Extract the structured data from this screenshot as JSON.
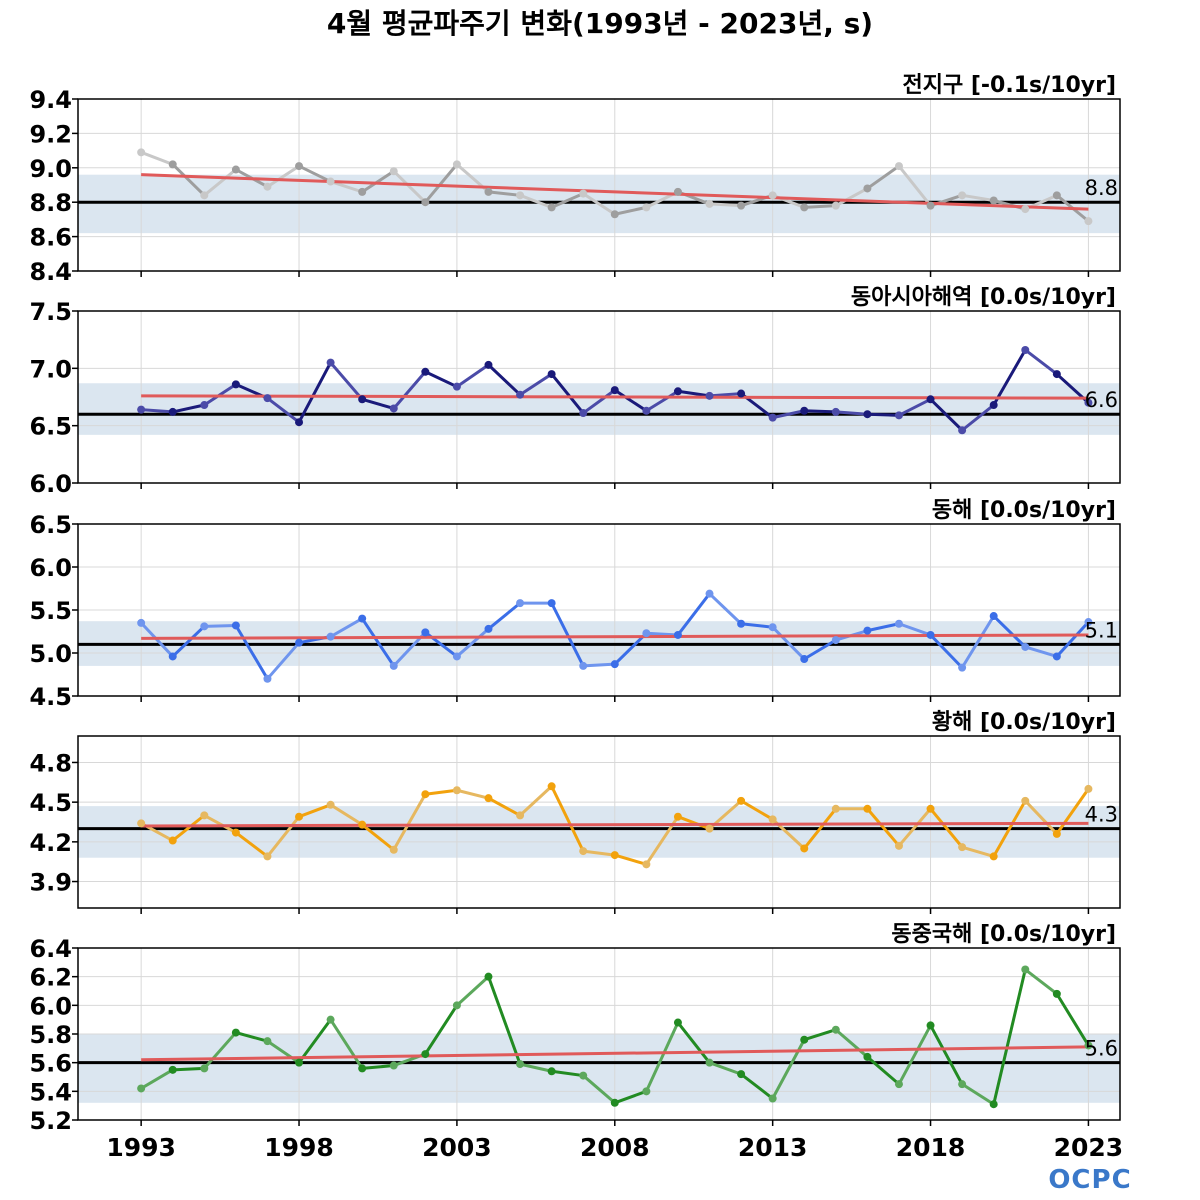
{
  "title": "4월 평균파주기 변화(1993년 - 2023년, s)",
  "logo": "OCPC",
  "colors": {
    "trend": "#e05a5a",
    "mean": "#000000",
    "band": "#dbe6f0",
    "grid": "#d8d8d8"
  },
  "chart_data": {
    "type": "line",
    "x": [
      1993,
      1994,
      1995,
      1996,
      1997,
      1998,
      1999,
      2000,
      2001,
      2002,
      2003,
      2004,
      2005,
      2006,
      2007,
      2008,
      2009,
      2010,
      2011,
      2012,
      2013,
      2014,
      2015,
      2016,
      2017,
      2018,
      2019,
      2020,
      2021,
      2022,
      2023
    ],
    "x_ticks": [
      1993,
      1998,
      2003,
      2008,
      2013,
      2018,
      2023
    ],
    "x_tick_labels": [
      "1993",
      "1998",
      "2003",
      "2008",
      "2013",
      "2018",
      "2023"
    ],
    "xlim": [
      1991,
      2024
    ],
    "panels": [
      {
        "name": "전지구",
        "label": "전지구 [-0.1s/10yr]",
        "mean_label": "8.8",
        "mean": 8.8,
        "band": [
          8.62,
          8.96
        ],
        "ylim": [
          8.4,
          9.4
        ],
        "yticks": [
          8.4,
          8.6,
          8.8,
          9.0,
          9.2,
          9.4
        ],
        "ytick_labels": [
          "8.4",
          "8.6",
          "8.8",
          "9.0",
          "9.2",
          "9.4"
        ],
        "trend": [
          8.96,
          8.76
        ],
        "color_dark": "#9e9e9e",
        "color_light": "#c8c8c8",
        "values": [
          9.09,
          9.02,
          8.84,
          8.99,
          8.89,
          9.01,
          8.92,
          8.86,
          8.98,
          8.8,
          9.02,
          8.86,
          8.84,
          8.77,
          8.85,
          8.73,
          8.77,
          8.86,
          8.79,
          8.78,
          8.84,
          8.77,
          8.78,
          8.88,
          9.01,
          8.78,
          8.84,
          8.81,
          8.76,
          8.84,
          8.69
        ]
      },
      {
        "name": "동아시아해역",
        "label": "동아시아해역 [0.0s/10yr]",
        "mean_label": "6.6",
        "mean": 6.6,
        "band": [
          6.42,
          6.87
        ],
        "ylim": [
          6.0,
          7.5
        ],
        "yticks": [
          6.0,
          6.5,
          7.0,
          7.5
        ],
        "ytick_labels": [
          "6.0",
          "6.5",
          "7.0",
          "7.5"
        ],
        "trend": [
          6.76,
          6.74
        ],
        "color_dark": "#1a1a7a",
        "color_light": "#4b4ba8",
        "values": [
          6.64,
          6.62,
          6.68,
          6.86,
          6.74,
          6.53,
          7.05,
          6.73,
          6.65,
          6.97,
          6.84,
          7.03,
          6.77,
          6.95,
          6.61,
          6.81,
          6.63,
          6.8,
          6.76,
          6.78,
          6.57,
          6.63,
          6.62,
          6.6,
          6.59,
          6.73,
          6.46,
          6.68,
          7.16,
          6.95,
          6.7
        ]
      },
      {
        "name": "동해",
        "label": "동해 [0.0s/10yr]",
        "mean_label": "5.1",
        "mean": 5.1,
        "band": [
          4.85,
          5.37
        ],
        "ylim": [
          4.5,
          6.5
        ],
        "yticks": [
          4.5,
          5.0,
          5.5,
          6.0,
          6.5
        ],
        "ytick_labels": [
          "4.5",
          "5.0",
          "5.5",
          "6.0",
          "6.5"
        ],
        "trend": [
          5.17,
          5.21
        ],
        "color_dark": "#3b6ee8",
        "color_light": "#6f95ee",
        "values": [
          5.35,
          4.96,
          5.31,
          5.32,
          4.7,
          5.12,
          5.19,
          5.4,
          4.85,
          5.24,
          4.96,
          5.28,
          5.58,
          5.58,
          4.85,
          4.87,
          5.23,
          5.21,
          5.69,
          5.34,
          5.3,
          4.93,
          5.15,
          5.26,
          5.34,
          5.21,
          4.83,
          5.43,
          5.07,
          4.96,
          5.36
        ]
      },
      {
        "name": "황해",
        "label": "황해 [0.0s/10yr]",
        "mean_label": "4.3",
        "mean": 4.3,
        "band": [
          4.08,
          4.47
        ],
        "ylim": [
          3.7,
          5.0
        ],
        "yticks": [
          3.9,
          4.2,
          4.5,
          4.8
        ],
        "ytick_labels": [
          "3.9",
          "4.2",
          "4.5",
          "4.8"
        ],
        "trend": [
          4.32,
          4.34
        ],
        "color_dark": "#f2a20d",
        "color_light": "#e6b860",
        "values": [
          4.34,
          4.21,
          4.4,
          4.27,
          4.09,
          4.39,
          4.48,
          4.33,
          4.14,
          4.56,
          4.59,
          4.53,
          4.4,
          4.62,
          4.13,
          4.1,
          4.03,
          4.39,
          4.3,
          4.51,
          4.37,
          4.15,
          4.45,
          4.45,
          4.17,
          4.45,
          4.16,
          4.09,
          4.51,
          4.26,
          4.6
        ]
      },
      {
        "name": "동중국해",
        "label": "동중국해 [0.0s/10yr]",
        "mean_label": "5.6",
        "mean": 5.6,
        "band": [
          5.32,
          5.8
        ],
        "ylim": [
          5.2,
          6.4
        ],
        "yticks": [
          5.2,
          5.4,
          5.6,
          5.8,
          6.0,
          6.2,
          6.4
        ],
        "ytick_labels": [
          "5.2",
          "5.4",
          "5.6",
          "5.8",
          "6.0",
          "6.2",
          "6.4"
        ],
        "trend": [
          5.62,
          5.71
        ],
        "color_dark": "#228b22",
        "color_light": "#5ca85c",
        "values": [
          5.42,
          5.55,
          5.56,
          5.81,
          5.75,
          5.6,
          5.9,
          5.56,
          5.58,
          5.66,
          6.0,
          6.2,
          5.59,
          5.54,
          5.51,
          5.32,
          5.4,
          5.88,
          5.6,
          5.52,
          5.35,
          5.76,
          5.83,
          5.64,
          5.45,
          5.86,
          5.45,
          5.31,
          6.25,
          6.08,
          5.72
        ]
      }
    ]
  }
}
